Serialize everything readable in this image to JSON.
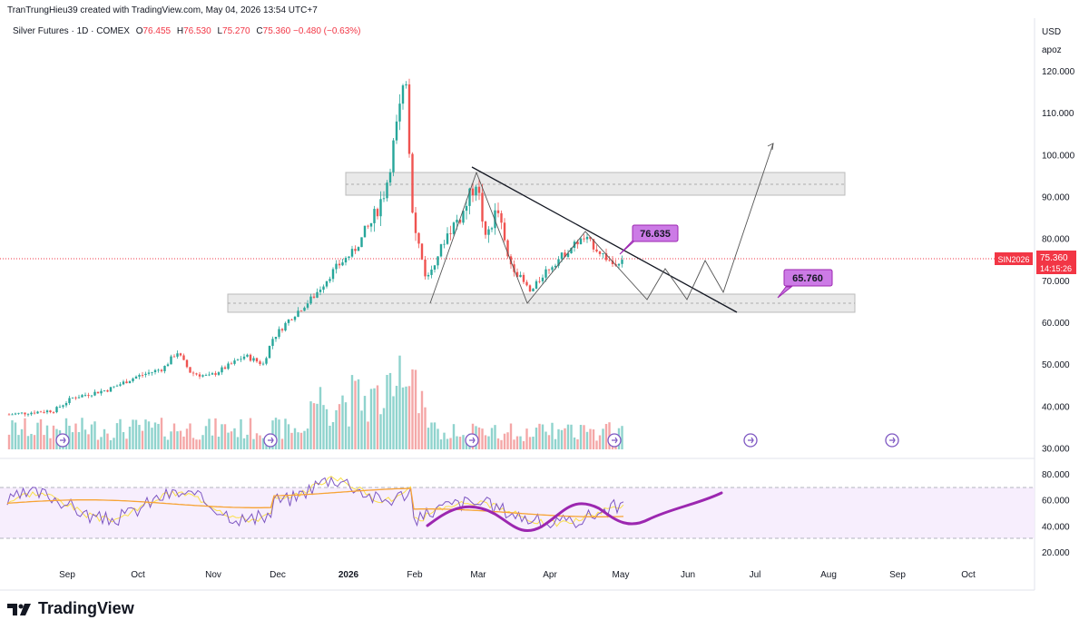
{
  "header": {
    "attribution": "TranTrungHieu39 created with TradingView.com, May 04, 2026 13:54 UTC+7"
  },
  "legend": {
    "symbol": "Silver Futures · 1D · COMEX",
    "o_label": "O",
    "o_value": "76.455",
    "h_label": "H",
    "h_value": "76.530",
    "l_label": "L",
    "l_value": "75.270",
    "c_label": "C",
    "c_value": "75.360",
    "change": "−0.480 (−0.63%)"
  },
  "price_scale": {
    "currency": "USD",
    "label": "apoz",
    "ticks": [
      "120.000",
      "110.000",
      "100.000",
      "90.000",
      "80.000",
      "70.000",
      "60.000",
      "50.000",
      "40.000",
      "30.000"
    ],
    "ticker_badge": "SIN2026",
    "last_price": "75.360",
    "countdown": "14:15:26"
  },
  "rsi_scale": {
    "ticks": [
      "80.000",
      "60.000",
      "40.000",
      "20.000"
    ]
  },
  "time_axis": {
    "labels": [
      "Sep",
      "Oct",
      "Nov",
      "Dec",
      "2026",
      "Feb",
      "Mar",
      "Apr",
      "May",
      "Jun",
      "Jul",
      "Aug",
      "Sep",
      "Oct"
    ]
  },
  "annotations": {
    "callout_upper": "76.635",
    "callout_lower": "65.760"
  },
  "colors": {
    "up": "#26a69a",
    "down": "#ef5350",
    "volume_up": "#8fd3cd",
    "volume_down": "#f4a7a7",
    "callout_fill": "#cc7be6",
    "callout_border": "#9c27b0",
    "rsi_line": "#7e57c2",
    "rsi_ma": "#f7a335",
    "rsi_fast": "#fbe04a",
    "rsi_band": "#f5eafc",
    "projection_curve": "#9c27b0",
    "zone_fill": "#e6e6e6",
    "badge_red": "#f23645"
  },
  "footer": {
    "brand": "TradingView"
  },
  "chart_data": {
    "type": "candlestick",
    "price_ylim": [
      30,
      125
    ],
    "rsi_ylim": [
      10,
      90
    ],
    "grid": true,
    "current_price": 75.36,
    "zones": [
      {
        "name": "resistance",
        "low": 90.5,
        "high": 95.5
      },
      {
        "name": "support",
        "low": 62.5,
        "high": 67
      }
    ],
    "callouts": [
      {
        "label": "76.635",
        "price": 76.635
      },
      {
        "label": "65.760",
        "price": 65.76
      }
    ]
  }
}
